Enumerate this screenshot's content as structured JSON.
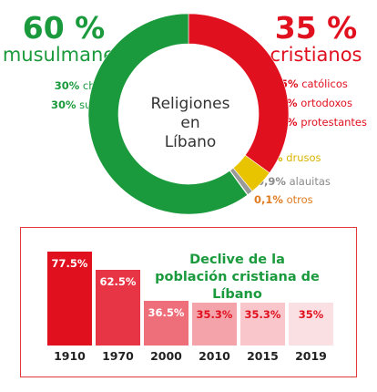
{
  "left_header": {
    "percent": "60 %",
    "label": "musulmanes"
  },
  "right_header": {
    "percent": "35 %",
    "label": "cristianos"
  },
  "muslim_breakdown": [
    {
      "value": "30%",
      "label": "chiíes"
    },
    {
      "value": "30%",
      "label": "suníes"
    }
  ],
  "christian_breakdown": [
    {
      "value": "25%",
      "label": "católicos"
    },
    {
      "value": "9%",
      "label": "ortodoxos"
    },
    {
      "value": "1%",
      "label": "protestantes"
    }
  ],
  "others": [
    {
      "value": "4%",
      "label": "drusos"
    },
    {
      "value": "0,9%",
      "label": "alauitas"
    },
    {
      "value": "0,1%",
      "label": "otros"
    }
  ],
  "center_label": [
    "Religiones",
    "en",
    "Líbano"
  ],
  "colors": {
    "green": "#1a9a3c",
    "red": "#e0101f",
    "yellow": "#e8c400",
    "grey": "#9a9a9a",
    "orange": "#e07b20"
  },
  "chart_data": [
    {
      "type": "pie",
      "title": "Religiones en Líbano",
      "slices": [
        {
          "label": "cristianos",
          "value": 35,
          "color": "#e0101f"
        },
        {
          "label": "drusos",
          "value": 4,
          "color": "#e8c400"
        },
        {
          "label": "alauitas",
          "value": 0.9,
          "color": "#9a9a9a"
        },
        {
          "label": "otros",
          "value": 0.1,
          "color": "#e07b20"
        },
        {
          "label": "musulmanes",
          "value": 60,
          "color": "#1a9a3c"
        }
      ]
    },
    {
      "type": "bar",
      "title": "Declive de la población cristiana de Líbano",
      "categories": [
        "1910",
        "1970",
        "2000",
        "2010",
        "2015",
        "2019"
      ],
      "values": [
        77.5,
        62.5,
        36.5,
        35.3,
        35.3,
        35
      ],
      "value_labels": [
        "77.5%",
        "62.5%",
        "36.5%",
        "35.3%",
        "35.3%",
        "35%"
      ],
      "bar_colors": [
        "#e0101f",
        "#e83545",
        "#ee6f7a",
        "#f4a3aa",
        "#f8c6cb",
        "#fbe0e3"
      ],
      "label_colors": [
        "#ffffff",
        "#ffffff",
        "#ffffff",
        "#e0101f",
        "#e0101f",
        "#e0101f"
      ],
      "ylim": [
        0,
        77.5
      ]
    }
  ]
}
